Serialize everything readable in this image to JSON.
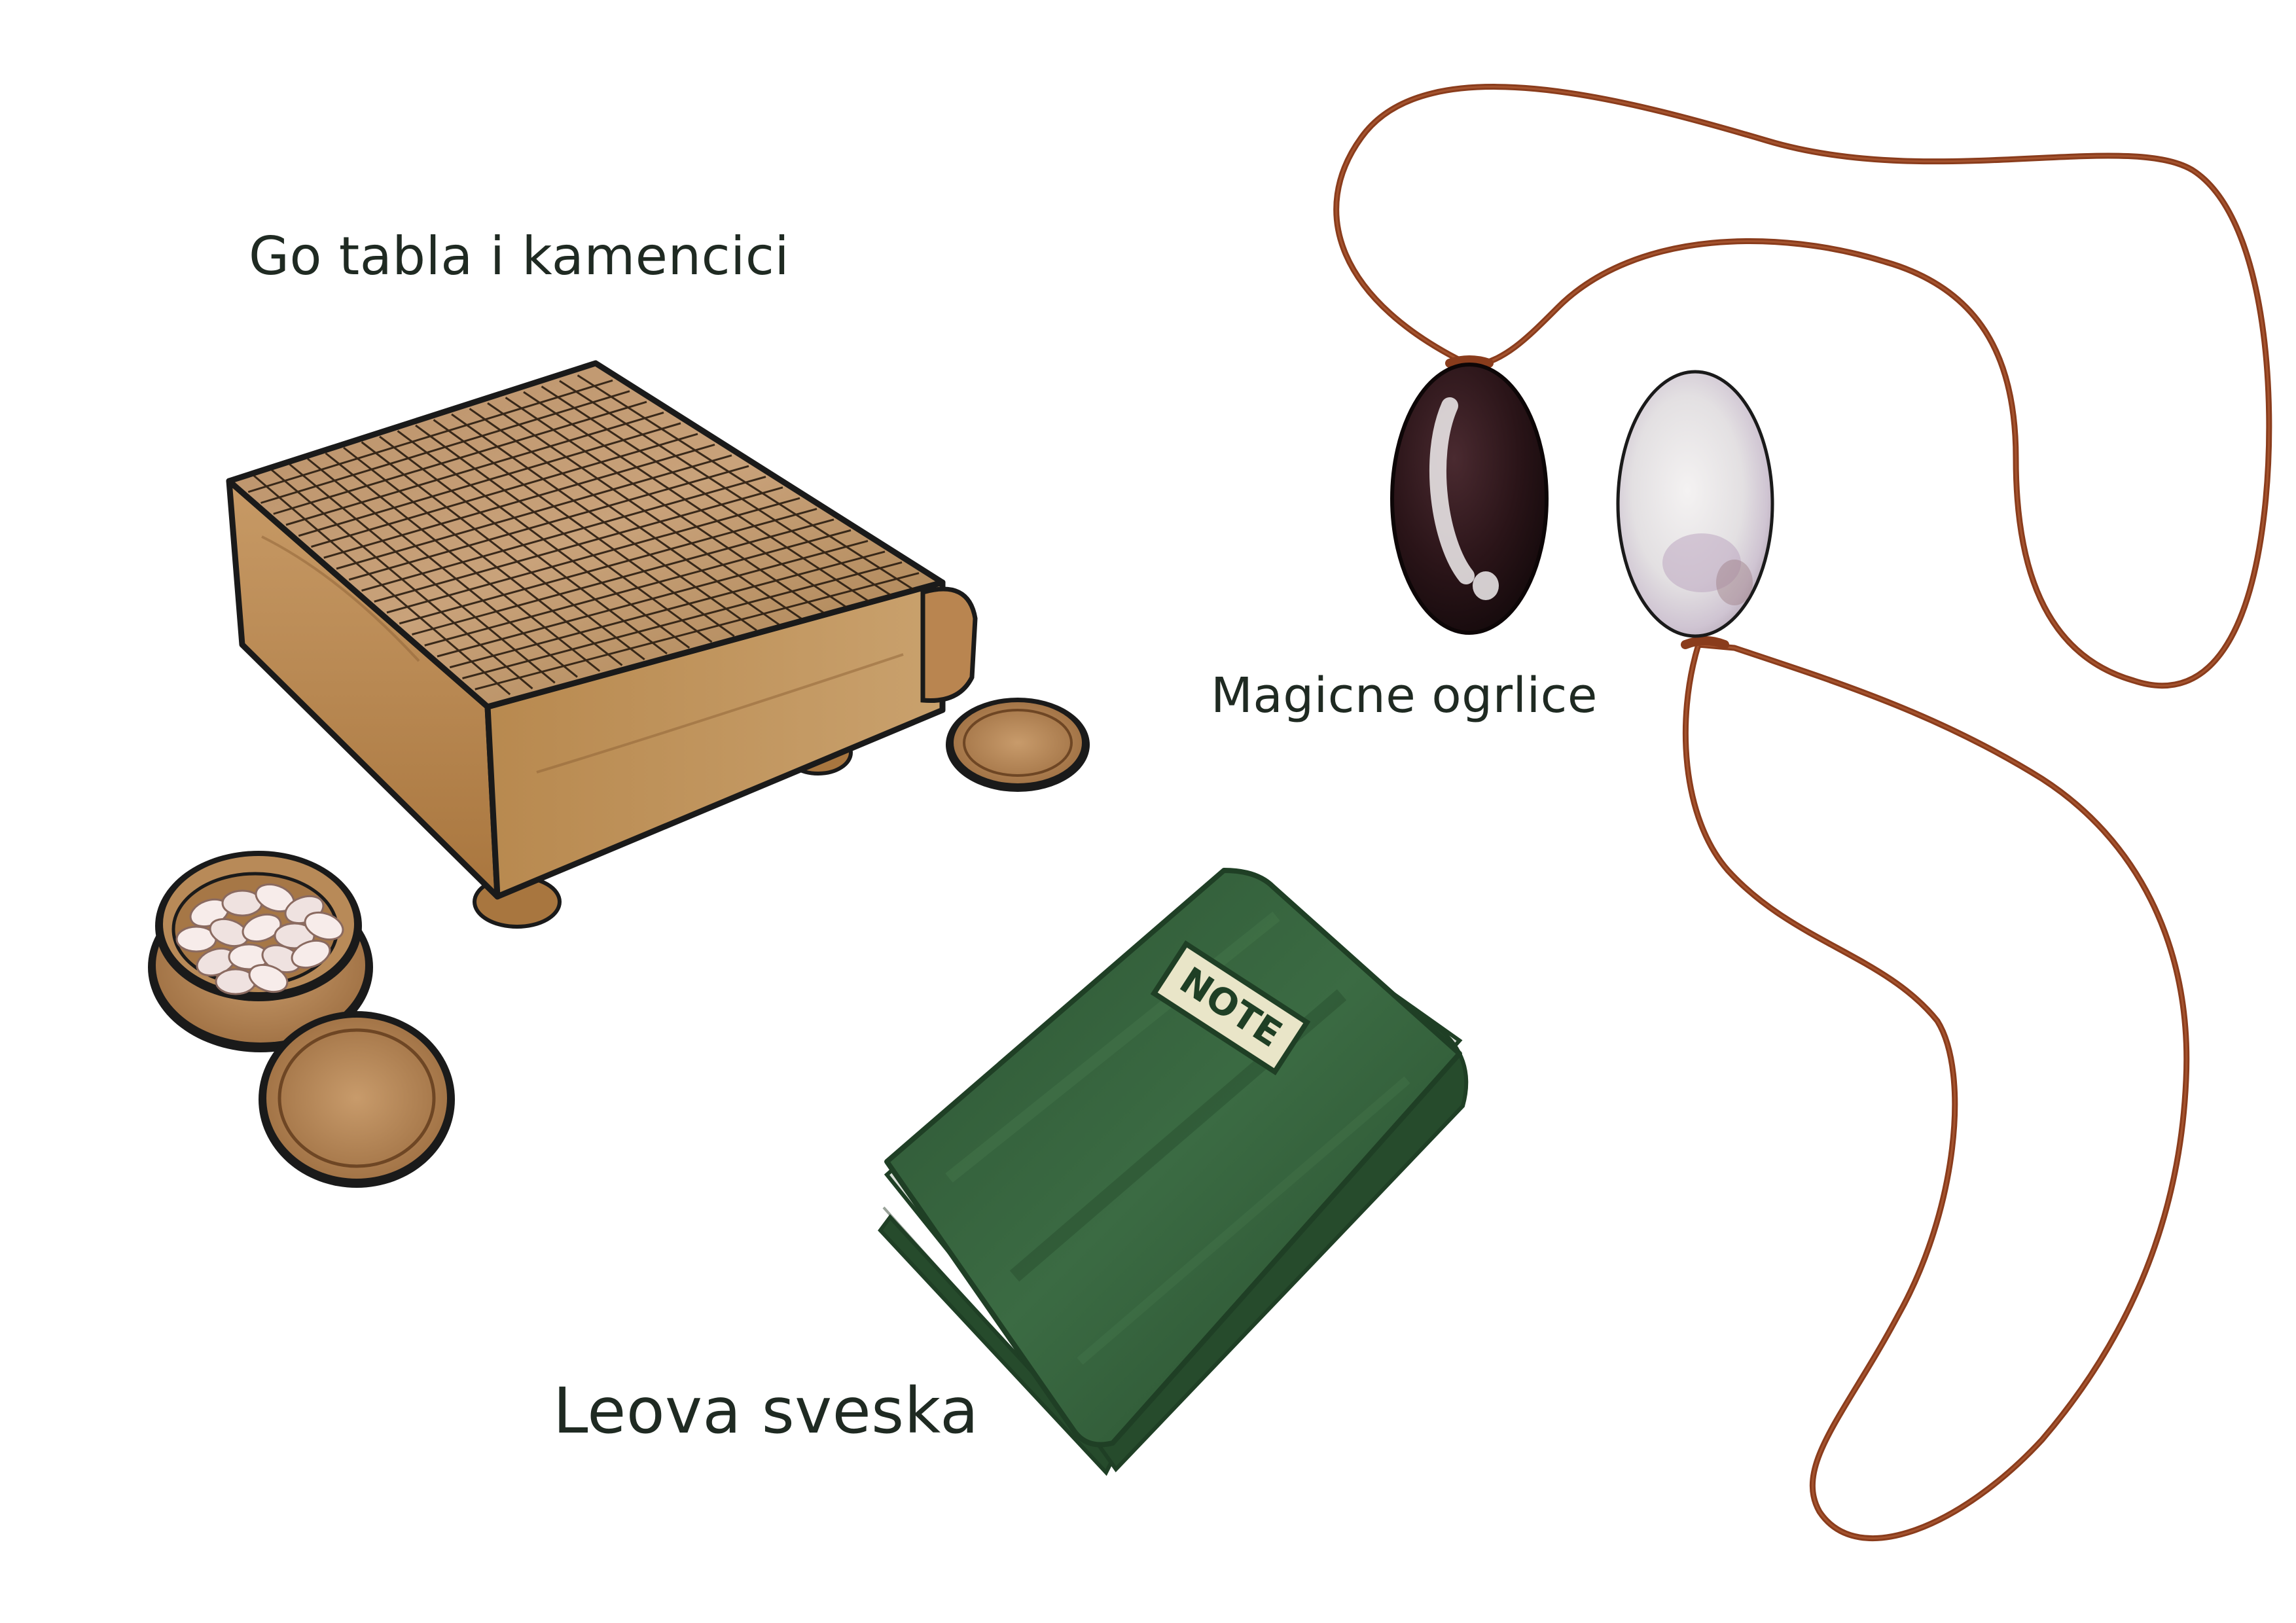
{
  "labels": {
    "go_board": "Go tabla i kamencici",
    "necklaces": "Magicne ogrlice",
    "notebook": "Leova sveska"
  },
  "notebook_cover_text": "NOTE",
  "colors": {
    "wood_light": "#c49a6c",
    "wood_dark": "#8a5f36",
    "outline": "#1a1a1a",
    "notebook_green": "#2f5a36",
    "notebook_green_dark": "#1f3f25",
    "cord": "#8a3c1c",
    "stone_black": "#2a1418",
    "stone_white": "#e8e6e6",
    "stone_white_pearl": "#c9b6c8"
  }
}
